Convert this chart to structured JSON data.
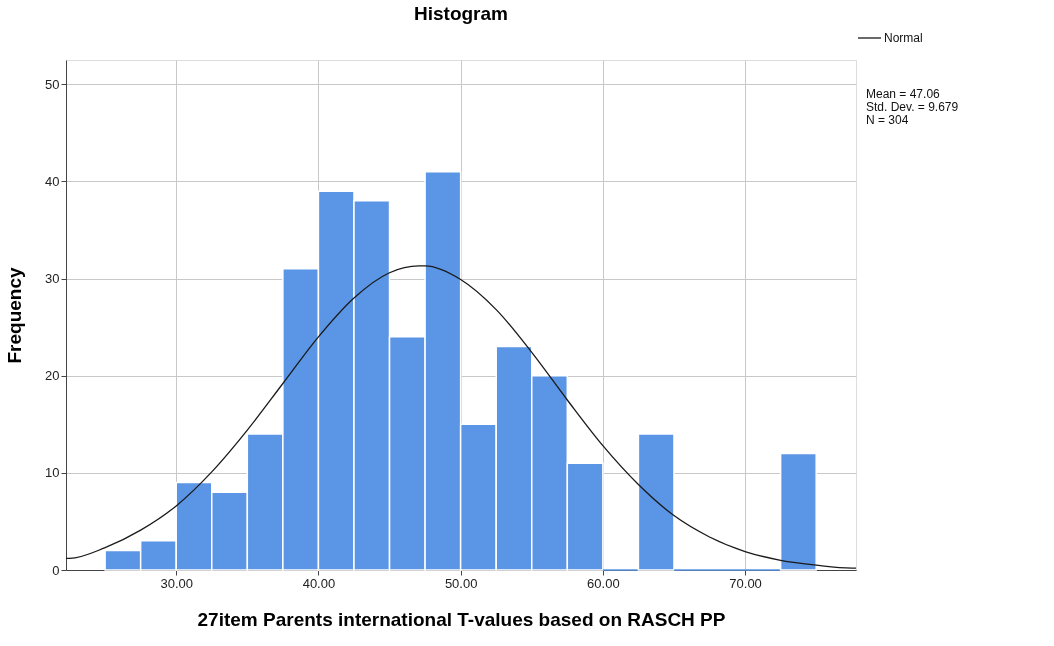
{
  "chart_data": {
    "type": "histogram",
    "title": "Histogram",
    "xlabel": "27item Parents international T-values based on RASCH PP",
    "ylabel": "Frequency",
    "bins": [
      25,
      27.5,
      30,
      32.5,
      35,
      37.5,
      40,
      42.5,
      45,
      47.5,
      50,
      52.5,
      55,
      57.5,
      60,
      62.5,
      65,
      67.5,
      70,
      72.5,
      75
    ],
    "values": [
      2,
      3,
      9,
      8,
      14,
      31,
      39,
      38,
      24,
      41,
      15,
      23,
      20,
      11,
      0,
      14,
      0,
      0,
      0,
      12
    ],
    "color": "#5b95e5",
    "series": [
      {
        "name": "Normal",
        "type": "line",
        "color": "#1a1a1a",
        "x": [
          22.25,
          22.5,
          25,
          27.5,
          30,
          32.5,
          35,
          37.5,
          40,
          42.5,
          45,
          47.06,
          47.5,
          50,
          52.5,
          55,
          57.5,
          60,
          62.5,
          65,
          67.5,
          70,
          72.5,
          75,
          77.5,
          77.8
        ],
        "values": [
          1.2,
          1.2,
          2.3,
          4.1,
          6.6,
          10.1,
          14.4,
          19.2,
          24.0,
          28.0,
          30.6,
          31.3,
          31.3,
          29.9,
          26.8,
          22.4,
          17.5,
          12.8,
          8.8,
          5.6,
          3.4,
          1.9,
          1.0,
          0.5,
          0.2,
          0.2
        ]
      }
    ],
    "xlim": [
      22.25,
      77.8
    ],
    "ylim": [
      0,
      52.5
    ],
    "xticks": [
      {
        "value": 30,
        "label": "30.00"
      },
      {
        "value": 40,
        "label": "40.00"
      },
      {
        "value": 50,
        "label": "50.00"
      },
      {
        "value": 60,
        "label": "60.00"
      },
      {
        "value": 70,
        "label": "70.00"
      }
    ],
    "yticks": [
      0,
      10,
      20,
      30,
      40,
      50
    ],
    "grid": true,
    "legend": "top right",
    "annotations": [
      "Mean = 47.06",
      "Std. Dev. = 9.679",
      "N = 304"
    ]
  }
}
